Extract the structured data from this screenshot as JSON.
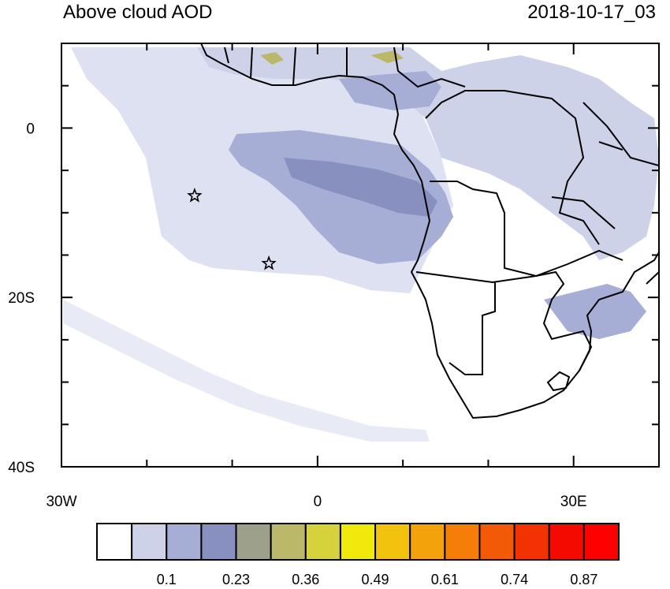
{
  "title_left": "Above cloud AOD",
  "title_right": "2018-10-17_03",
  "map": {
    "lon_range": [
      -30,
      40
    ],
    "lat_range": [
      -40,
      10
    ],
    "lat_ticks": [
      {
        "label": "0",
        "lat": 0
      },
      {
        "label": "20S",
        "lat": -20
      },
      {
        "label": "40S",
        "lat": -40
      }
    ],
    "lon_ticks": [
      {
        "label": "30W",
        "lon": -30
      },
      {
        "label": "0",
        "lon": 0
      },
      {
        "label": "30E",
        "lon": 30
      }
    ],
    "markers": [
      {
        "name": "star",
        "lon": -14.4,
        "lat": -8.0
      },
      {
        "name": "star",
        "lon": -5.7,
        "lat": -16.0
      }
    ]
  },
  "colorbar": {
    "colors": [
      "#ffffff",
      "#cdd2e8",
      "#a7aed6",
      "#8890c0",
      "#9da08a",
      "#bbb86a",
      "#d6d23c",
      "#f1e80c",
      "#f2c30e",
      "#f4a20c",
      "#f47e08",
      "#f35a06",
      "#f33204",
      "#f50a02",
      "#ff0000"
    ],
    "labels": [
      "0.1",
      "0.23",
      "0.36",
      "0.49",
      "0.61",
      "0.74",
      "0.87"
    ]
  }
}
